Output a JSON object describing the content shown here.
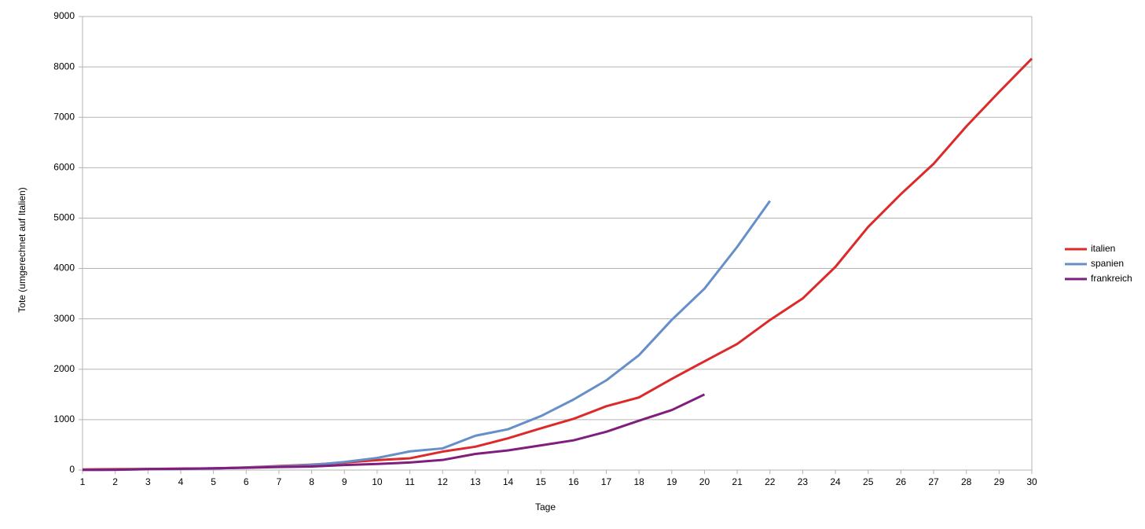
{
  "chart_data": {
    "type": "line",
    "y_label": "Tote (umgerechnet auf Italien)",
    "x_label": "Tage",
    "x": [
      1,
      2,
      3,
      4,
      5,
      6,
      7,
      8,
      9,
      10,
      11,
      12,
      13,
      14,
      15,
      16,
      17,
      18,
      19,
      20,
      21,
      22,
      23,
      24,
      25,
      26,
      27,
      28,
      29,
      30
    ],
    "series": [
      {
        "name": "italien",
        "color": "#dc2a2a",
        "values": [
          12,
          17,
          21,
          29,
          34,
          52,
          79,
          107,
          148,
          197,
          233,
          366,
          463,
          631,
          827,
          1016,
          1266,
          1441,
          1809,
          2158,
          2503,
          2978,
          3405,
          4032,
          4825,
          5476,
          6077,
          6820,
          7503,
          8165
        ]
      },
      {
        "name": "spanien",
        "color": "#668fca",
        "values": [
          3,
          5,
          15,
          20,
          30,
          50,
          70,
          100,
          160,
          240,
          370,
          430,
          680,
          810,
          1070,
          1400,
          1780,
          2280,
          2980,
          3600,
          4430,
          5340,
          null,
          null,
          null,
          null,
          null,
          null,
          null,
          null
        ]
      },
      {
        "name": "frankreich",
        "color": "#7e1f7e",
        "values": [
          3,
          5,
          20,
          25,
          35,
          45,
          60,
          70,
          100,
          120,
          150,
          200,
          320,
          390,
          490,
          590,
          760,
          980,
          1190,
          1500,
          null,
          null,
          null,
          null,
          null,
          null,
          null,
          null,
          null,
          null
        ]
      }
    ],
    "xlim": [
      1,
      30
    ],
    "xticks": [
      1,
      2,
      3,
      4,
      5,
      6,
      7,
      8,
      9,
      10,
      11,
      12,
      13,
      14,
      15,
      16,
      17,
      18,
      19,
      20,
      21,
      22,
      23,
      24,
      25,
      26,
      27,
      28,
      29,
      30
    ],
    "ylim": [
      0,
      9000
    ],
    "yticks": [
      0,
      1000,
      2000,
      3000,
      4000,
      5000,
      6000,
      7000,
      8000,
      9000
    ],
    "grid": true,
    "legend": "right"
  }
}
